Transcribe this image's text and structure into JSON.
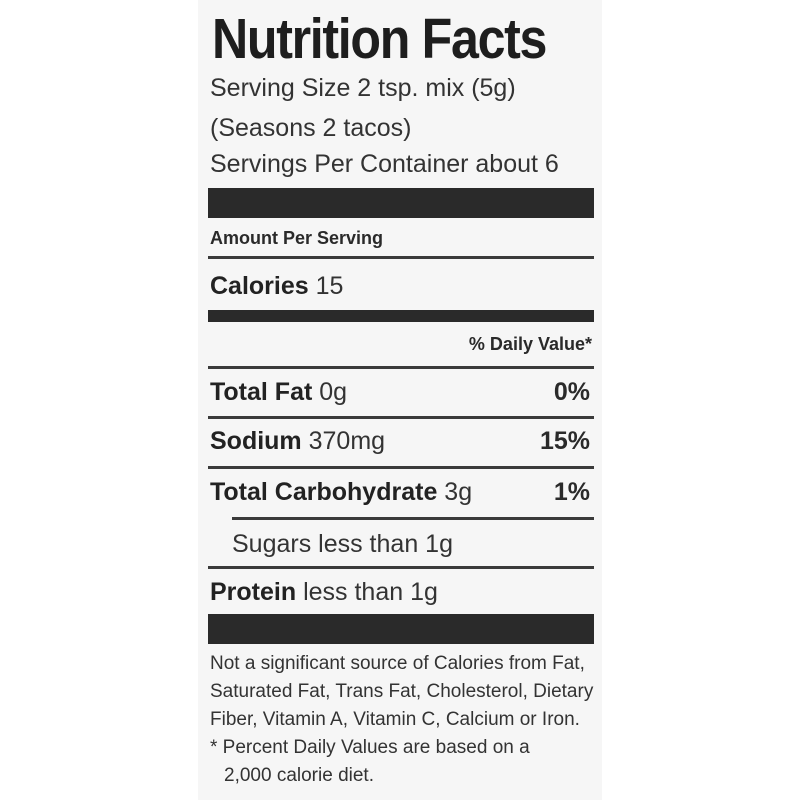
{
  "title": "Nutrition Facts",
  "serving_size": "Serving Size 2 tsp. mix (5g)",
  "serving_note": "(Seasons 2 tacos)",
  "servings_per_container": "Servings Per Container about 6",
  "amount_per_serving": "Amount Per Serving",
  "calories": {
    "label": "Calories",
    "value": "15"
  },
  "daily_value_header": "% Daily Value*",
  "nutrients": [
    {
      "label": "Total Fat",
      "amount": "0g",
      "dv": "0%"
    },
    {
      "label": "Sodium",
      "amount": "370mg",
      "dv": "15%"
    },
    {
      "label": "Total Carbohydrate",
      "amount": "3g",
      "dv": "1%"
    }
  ],
  "sugars": "Sugars less than 1g",
  "protein": {
    "label": "Protein",
    "amount": "less than 1g"
  },
  "footnote": {
    "line1": "Not a significant source of Calories from Fat,",
    "line2": "Saturated Fat, Trans Fat, Cholesterol, Dietary",
    "line3": "Fiber, Vitamin A, Vitamin C, Calcium or Iron.",
    "line4": "* Percent Daily Values are based on a",
    "line5": "2,000 calorie diet."
  }
}
